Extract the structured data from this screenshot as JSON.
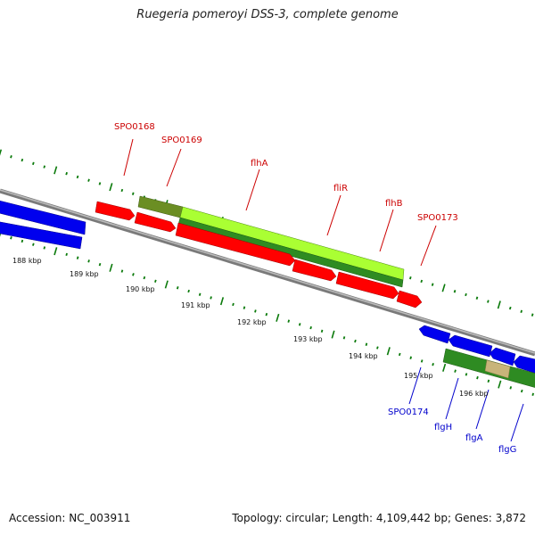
{
  "title": "Ruegeria pomeroyi DSS-3, complete genome",
  "footer": {
    "accession": "Accession: NC_003911",
    "topology": "Topology: circular; Length: 4,109,442 bp; Genes: 3,872"
  },
  "colors": {
    "forward_cds": "#ff0000",
    "reverse_cds": "#0000ff",
    "operon_light": "#aaff33",
    "operon_dark": "#228b22",
    "operon_olive": "#6b8e23",
    "operon_tan": "#c8b47a",
    "backbone": "#8c8c8c",
    "tick": "#0b7a0b",
    "label_forward": "#cc0000",
    "label_reverse": "#0000cc"
  },
  "scale_labels": [
    "188 kbp",
    "189 kbp",
    "190 kbp",
    "191 kbp",
    "192 kbp",
    "193 kbp",
    "194 kbp",
    "195 kbp",
    "196 kbp"
  ],
  "gene_labels_forward": [
    "SPO0168",
    "SPO0169",
    "flhA",
    "fliR",
    "flhB",
    "SPO0173"
  ],
  "gene_labels_reverse": [
    "SPO0174",
    "flgH",
    "flgA",
    "flgG"
  ]
}
